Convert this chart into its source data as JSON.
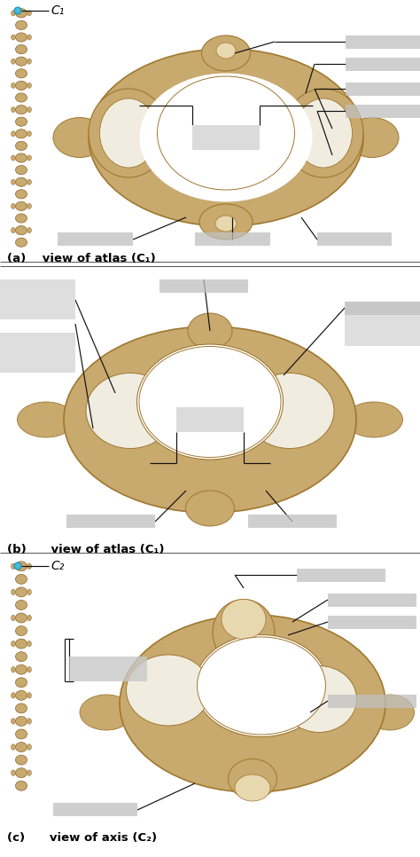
{
  "title_a": "(a)    view of atlas (C₁)",
  "title_b": "(b)      view of atlas (C₁)",
  "title_c": "(c)      view of axis (C₂)",
  "bg_color": "#ffffff",
  "bone_tan": "#c8a96e",
  "bone_light": "#e8d8b0",
  "bone_dark": "#a07830",
  "bone_shadow": "#b09060",
  "white_surface": "#f0ece0",
  "c1_label": "C₁",
  "c2_label": "C₂",
  "label_gray": "#c8c8c8",
  "line_color": "#111111",
  "panel_sep_color": "#cccccc"
}
